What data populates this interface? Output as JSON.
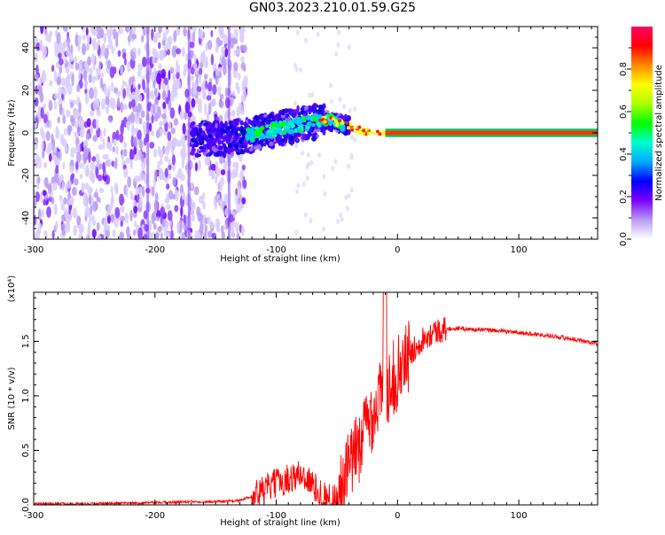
{
  "title": "GN03.2023.210.01.59.G25",
  "chart_data": [
    {
      "type": "heatmap",
      "xlabel": "Height of straight line (km)",
      "ylabel": "Frequency (Hz)",
      "xlim": [
        -300,
        165
      ],
      "ylim": [
        -50,
        50
      ],
      "xticks": [
        -300,
        -200,
        -100,
        0,
        100
      ],
      "yticks": [
        -40,
        -20,
        0,
        20,
        40
      ],
      "colorbar": {
        "label": "Normalized spectral amplitude",
        "range": [
          0,
          1
        ],
        "ticks": [
          "0.0",
          "0.2",
          "0.4",
          "0.6",
          "0.8"
        ],
        "colormap": [
          "#ffffff",
          "#b89bf5",
          "#7a00ff",
          "#0000ff",
          "#00aaff",
          "#00ffcc",
          "#00ff00",
          "#aaff00",
          "#ffff00",
          "#ff8800",
          "#ff0000",
          "#ff0066"
        ]
      },
      "features": {
        "noise_region_x": [
          -300,
          -135
        ],
        "doppler_track": {
          "x": [
            -170,
            -150,
            -130,
            -115,
            -100,
            -90,
            -80,
            -70,
            -60,
            -50,
            -40,
            -30,
            -20,
            -10,
            0,
            20,
            60,
            100,
            165
          ],
          "y": [
            -3,
            -3,
            -2,
            0,
            2,
            3,
            4,
            5,
            6,
            5,
            3,
            1,
            0,
            -1,
            0,
            0,
            0,
            0,
            0
          ]
        },
        "carrier_line_x": [
          0,
          165
        ]
      }
    },
    {
      "type": "line",
      "xlabel": "Height of straight line (km)",
      "ylabel": "SNR (10 * v/v)",
      "scale_label": "(x10⁴)",
      "xlim": [
        -300,
        165
      ],
      "ylim": [
        0,
        1.95
      ],
      "xticks": [
        -300,
        -200,
        -100,
        0,
        100
      ],
      "yticks": [
        0.0,
        0.5,
        1.0,
        1.5
      ],
      "ytick_labels": [
        "0.0",
        "0.5",
        "1.0",
        "1.5"
      ],
      "series": [
        {
          "color": "#ff0000",
          "x": [
            -300,
            -250,
            -200,
            -170,
            -150,
            -130,
            -120,
            -110,
            -100,
            -90,
            -80,
            -75,
            -70,
            -65,
            -60,
            -55,
            -50,
            -45,
            -40,
            -35,
            -30,
            -25,
            -20,
            -15,
            -10,
            -5,
            0,
            5,
            10,
            15,
            20,
            25,
            30,
            40,
            50,
            60,
            80,
            100,
            120,
            140,
            165
          ],
          "y": [
            0.01,
            0.01,
            0.02,
            0.03,
            0.03,
            0.04,
            0.08,
            0.14,
            0.2,
            0.24,
            0.28,
            0.25,
            0.18,
            0.12,
            0.08,
            0.05,
            0.08,
            0.15,
            0.35,
            0.45,
            0.6,
            0.75,
            0.85,
            1.0,
            1.05,
            1.15,
            1.2,
            1.3,
            1.38,
            1.45,
            1.52,
            1.56,
            1.59,
            1.61,
            1.62,
            1.61,
            1.6,
            1.58,
            1.56,
            1.53,
            1.48
          ]
        }
      ]
    }
  ]
}
